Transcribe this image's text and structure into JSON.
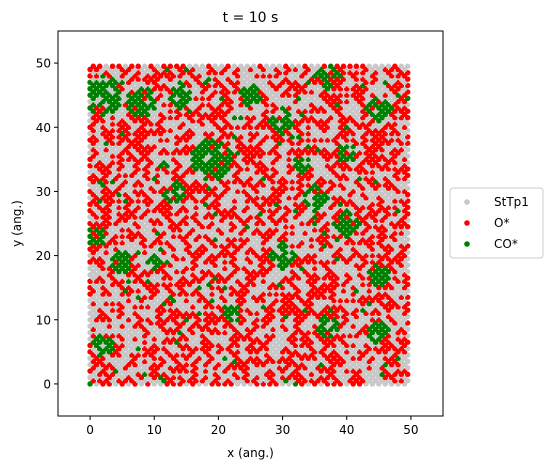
{
  "chart_data": {
    "type": "scatter",
    "title": "t = 10 s",
    "xlabel": "x (ang.)",
    "ylabel": "y (ang.)",
    "xlim": [
      -5,
      55
    ],
    "ylim": [
      -5,
      55
    ],
    "xticks": [
      0,
      10,
      20,
      30,
      40,
      50
    ],
    "yticks": [
      0,
      10,
      20,
      30,
      40,
      50
    ],
    "grid": false,
    "legend_position": "right-center",
    "lattice": {
      "x_start": 0,
      "x_end": 49.5,
      "y_start": 0,
      "y_end": 49.5,
      "spacing": 1,
      "row_offset": 0.5
    },
    "series": [
      {
        "name": "StTp1",
        "color": "#c8c8c8"
      },
      {
        "name": "O*",
        "color": "#ff0000"
      },
      {
        "name": "CO*",
        "color": "#008000"
      }
    ],
    "coverage_estimate": {
      "StTp1": 0.46,
      "O*": 0.45,
      "CO*": 0.09
    },
    "co_clusters": [
      {
        "x": 19,
        "y": 35,
        "r": 3.5
      },
      {
        "x": 2,
        "y": 45,
        "r": 3.0
      },
      {
        "x": 8,
        "y": 44,
        "r": 2.5
      },
      {
        "x": 14,
        "y": 45,
        "r": 2.0
      },
      {
        "x": 45,
        "y": 43,
        "r": 2.0
      },
      {
        "x": 37,
        "y": 48,
        "r": 2.0
      },
      {
        "x": 30,
        "y": 41,
        "r": 2.0
      },
      {
        "x": 35,
        "y": 29,
        "r": 2.0
      },
      {
        "x": 40,
        "y": 25,
        "r": 2.0
      },
      {
        "x": 30,
        "y": 20,
        "r": 2.0
      },
      {
        "x": 13,
        "y": 30,
        "r": 1.8
      },
      {
        "x": 5,
        "y": 19,
        "r": 1.8
      },
      {
        "x": 25,
        "y": 45,
        "r": 1.8
      },
      {
        "x": 45,
        "y": 17,
        "r": 1.6
      },
      {
        "x": 2,
        "y": 6,
        "r": 1.6
      },
      {
        "x": 37,
        "y": 9,
        "r": 1.6
      },
      {
        "x": 45,
        "y": 8,
        "r": 1.6
      },
      {
        "x": 10,
        "y": 19,
        "r": 1.5
      },
      {
        "x": 1,
        "y": 23,
        "r": 1.5
      },
      {
        "x": 22,
        "y": 11,
        "r": 1.5
      },
      {
        "x": 33,
        "y": 34,
        "r": 1.5
      },
      {
        "x": 40,
        "y": 36,
        "r": 1.5
      }
    ]
  }
}
